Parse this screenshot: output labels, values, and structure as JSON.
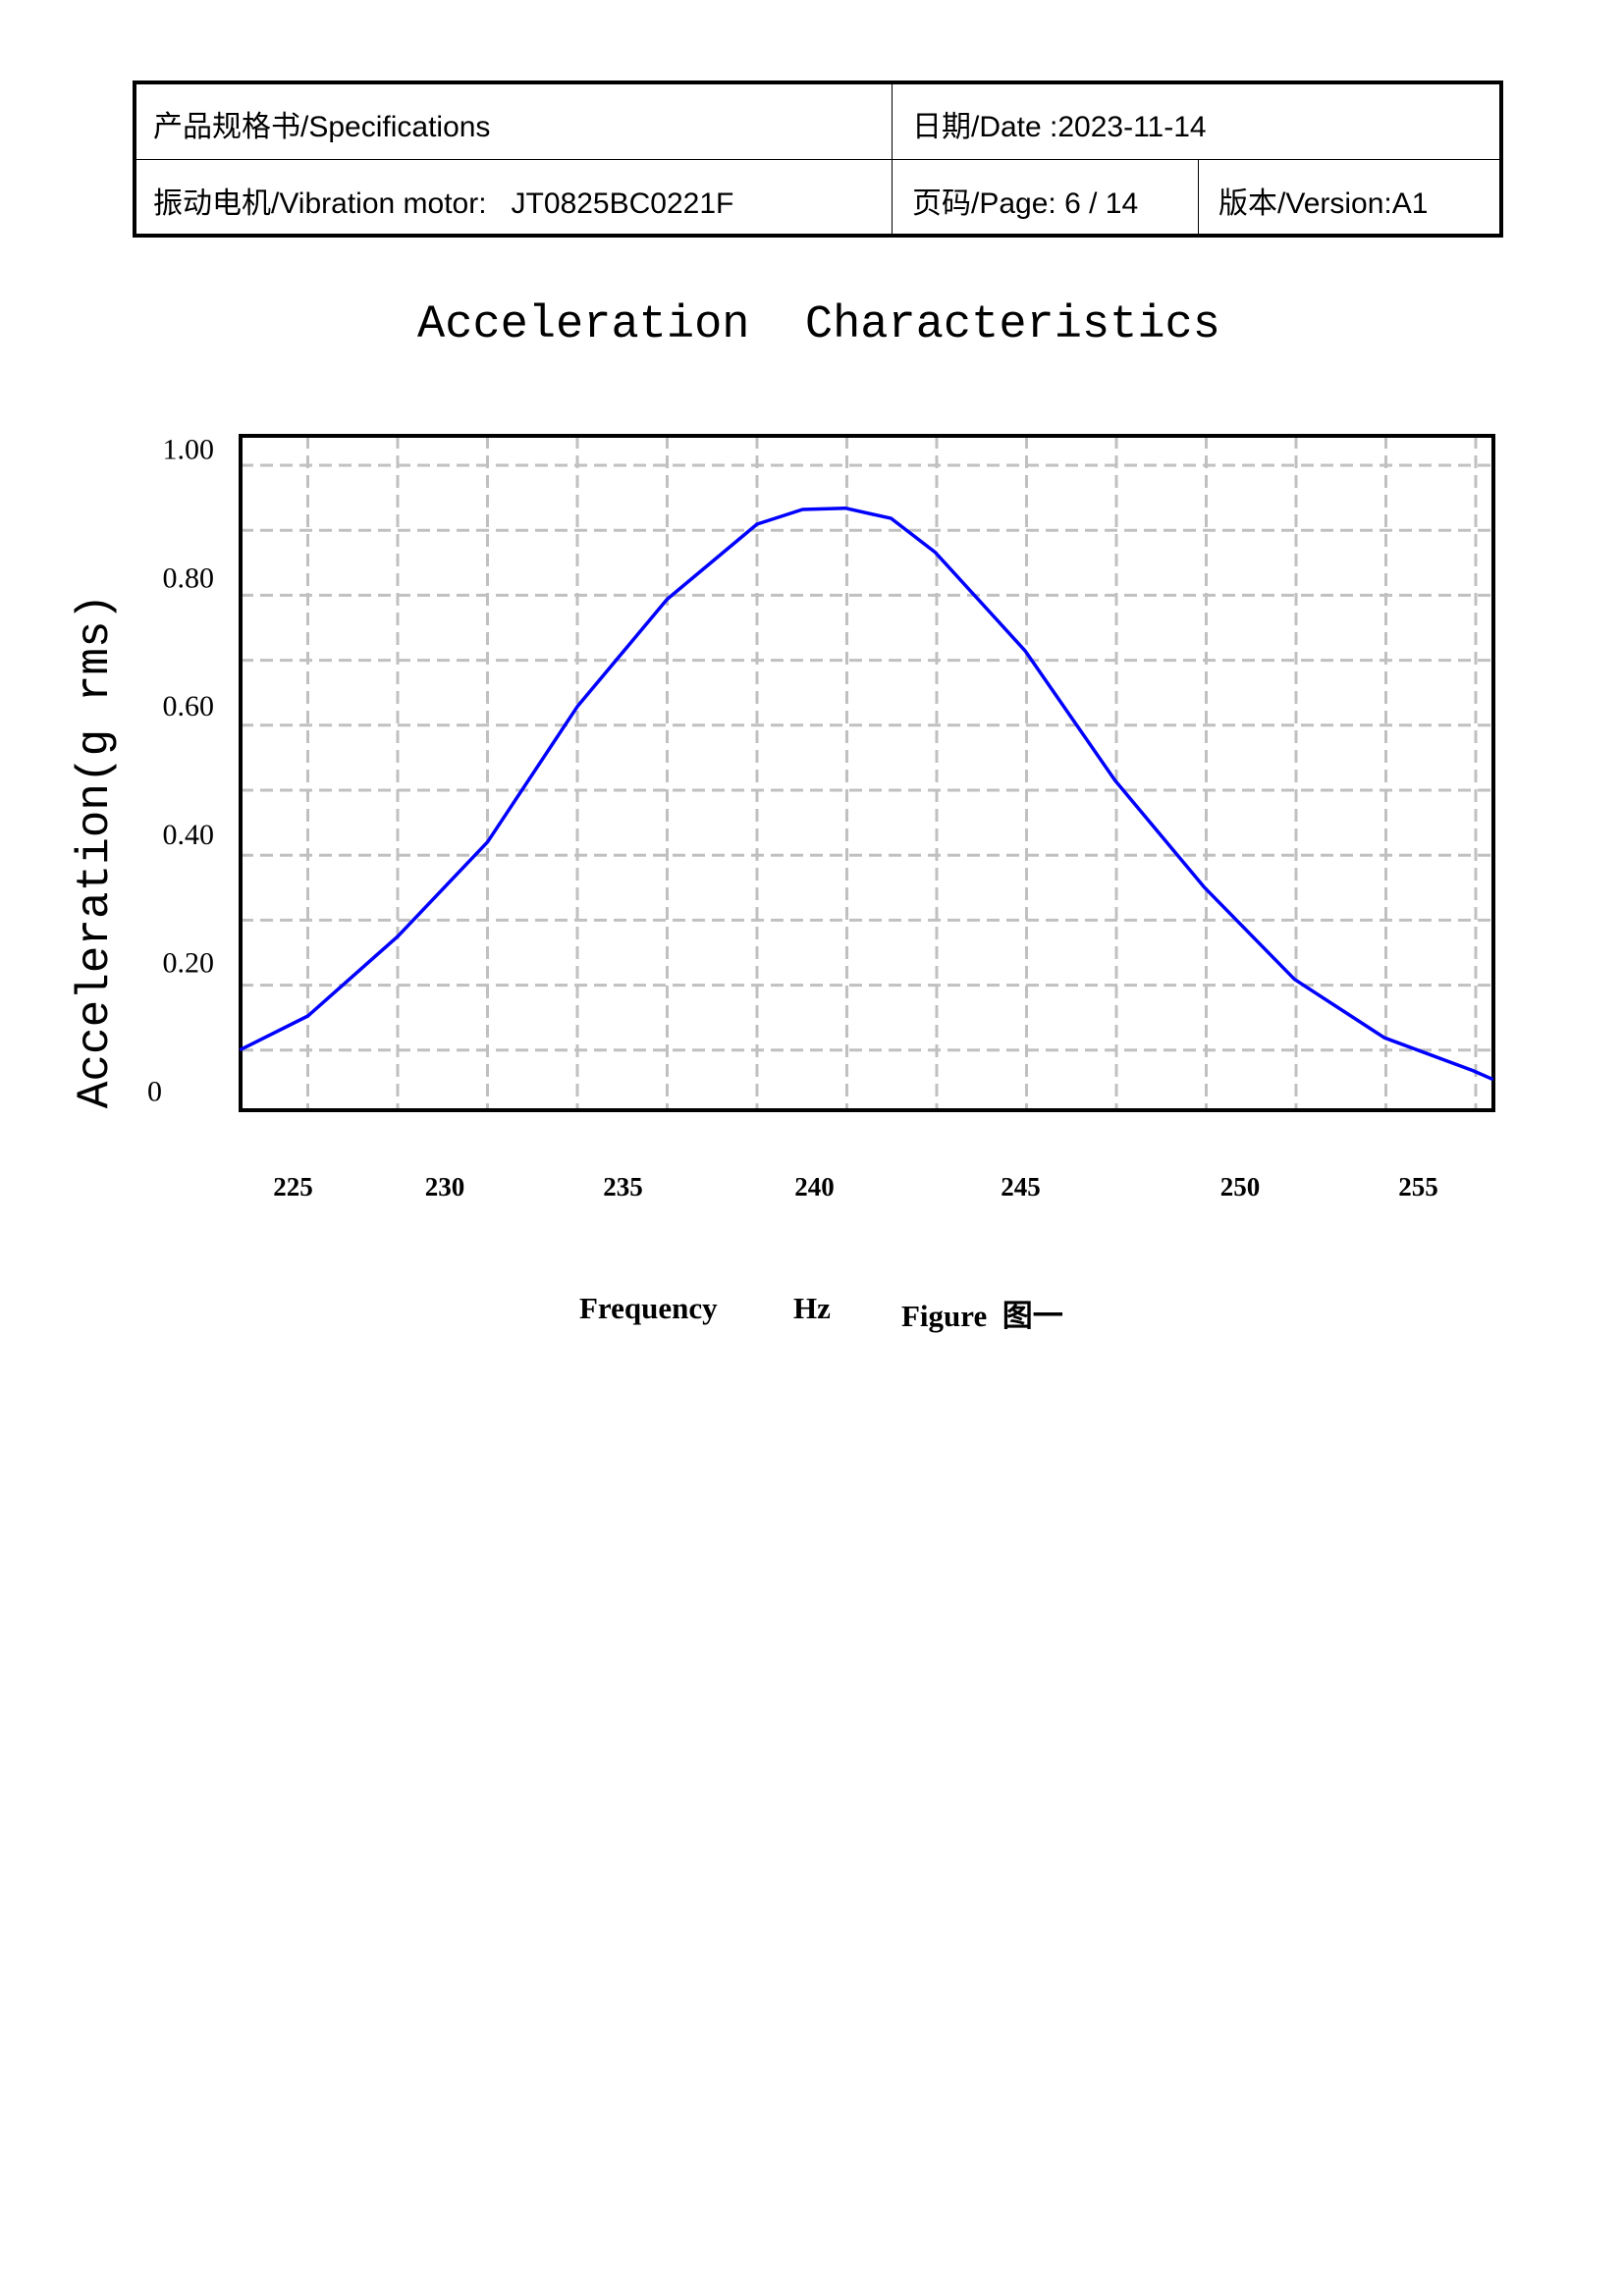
{
  "header": {
    "spec": "产品规格书/Specifications",
    "date": "日期/Date :2023-11-14",
    "product": "振动电机/Vibration motor:   JT0825BC0221F",
    "page": "页码/Page: 6 / 14",
    "version": "版本/Version:A1"
  },
  "footer": {
    "frequency": "Frequency",
    "unit": "Hz",
    "figure": "Figure  图一"
  },
  "chart_data": {
    "type": "line",
    "title": "Acceleration  Characteristics",
    "xlabel": "Frequency    Hz",
    "ylabel": "Acceleration(g rms)",
    "ylim": [
      0,
      1.0
    ],
    "xlim": [
      223.25,
      257.1
    ],
    "grid": true,
    "y_ticks": [
      "0",
      "0.20",
      "0.40",
      "0.60",
      "0.80",
      "1.00"
    ],
    "y_tick_values": [
      0,
      0.2,
      0.4,
      0.6,
      0.8,
      1.0
    ],
    "x_ticks": [
      "225",
      "230",
      "235",
      "240",
      "245",
      "250",
      "255"
    ],
    "x_tick_values": [
      225,
      230,
      235,
      240,
      245,
      250,
      255
    ],
    "line_color": "#0000ff",
    "series": [
      {
        "name": "Acceleration",
        "x": [
          223.25,
          225.49,
          228.45,
          231.2,
          233.72,
          236.15,
          238.5,
          239.69,
          240.75,
          241.86,
          242.93,
          245.1,
          247.15,
          249.19,
          251.53,
          254.05,
          256.53,
          257.1
        ],
        "y": [
          0.064,
          0.117,
          0.241,
          0.388,
          0.599,
          0.766,
          0.883,
          0.906,
          0.908,
          0.892,
          0.839,
          0.686,
          0.484,
          0.317,
          0.174,
          0.083,
          0.032,
          0.018
        ]
      }
    ]
  }
}
